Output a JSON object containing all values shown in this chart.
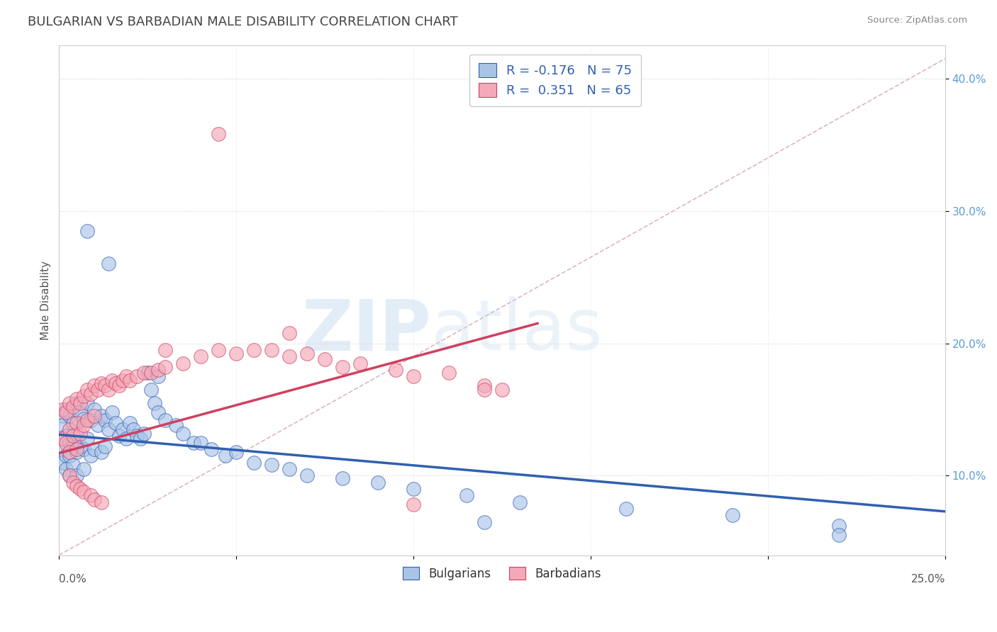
{
  "title": "BULGARIAN VS BARBADIAN MALE DISABILITY CORRELATION CHART",
  "source": "Source: ZipAtlas.com",
  "ylabel": "Male Disability",
  "xlim": [
    0.0,
    0.25
  ],
  "ylim": [
    0.04,
    0.425
  ],
  "bulgarian_color": "#aac4e8",
  "barbadian_color": "#f4a8b8",
  "bulgarian_line_color": "#3060b0",
  "barbadian_line_color": "#d04060",
  "ref_line_color": "#d8b0b8",
  "watermark_zip": "ZIP",
  "watermark_atlas": "atlas",
  "title_color": "#444444",
  "title_fontsize": 13,
  "legend_label1": "Bulgarians",
  "legend_label2": "Barbadians",
  "bg_color": "#ffffff",
  "plot_bg_color": "#ffffff",
  "y_ticks": [
    0.1,
    0.2,
    0.3,
    0.4
  ],
  "y_tick_labels": [
    "10.0%",
    "20.0%",
    "30.0%",
    "40.0%"
  ],
  "bulgarian_trend_x": [
    0.0,
    0.25
  ],
  "bulgarian_trend_y": [
    0.131,
    0.073
  ],
  "barbadian_trend_x": [
    0.0,
    0.135
  ],
  "barbadian_trend_y": [
    0.117,
    0.215
  ],
  "ref_line_x": [
    0.0,
    0.25
  ],
  "ref_line_y": [
    0.04,
    0.415
  ],
  "bulgarian_pts_x": [
    0.001,
    0.001,
    0.001,
    0.001,
    0.002,
    0.002,
    0.002,
    0.002,
    0.003,
    0.003,
    0.003,
    0.003,
    0.004,
    0.004,
    0.004,
    0.005,
    0.005,
    0.005,
    0.005,
    0.006,
    0.006,
    0.007,
    0.007,
    0.007,
    0.008,
    0.008,
    0.009,
    0.009,
    0.01,
    0.01,
    0.011,
    0.012,
    0.012,
    0.013,
    0.013,
    0.014,
    0.015,
    0.016,
    0.017,
    0.018,
    0.019,
    0.02,
    0.021,
    0.022,
    0.023,
    0.024,
    0.025,
    0.026,
    0.027,
    0.028,
    0.03,
    0.033,
    0.035,
    0.038,
    0.04,
    0.043,
    0.047,
    0.05,
    0.055,
    0.06,
    0.065,
    0.07,
    0.08,
    0.09,
    0.1,
    0.115,
    0.13,
    0.16,
    0.19,
    0.22,
    0.008,
    0.014,
    0.028,
    0.12,
    0.22
  ],
  "bulgarian_pts_y": [
    0.145,
    0.138,
    0.12,
    0.11,
    0.15,
    0.13,
    0.115,
    0.105,
    0.145,
    0.125,
    0.115,
    0.1,
    0.14,
    0.125,
    0.108,
    0.155,
    0.132,
    0.118,
    0.1,
    0.148,
    0.122,
    0.143,
    0.12,
    0.105,
    0.155,
    0.128,
    0.142,
    0.115,
    0.15,
    0.12,
    0.138,
    0.145,
    0.118,
    0.142,
    0.122,
    0.135,
    0.148,
    0.14,
    0.13,
    0.135,
    0.128,
    0.14,
    0.135,
    0.13,
    0.128,
    0.132,
    0.178,
    0.165,
    0.155,
    0.148,
    0.142,
    0.138,
    0.132,
    0.125,
    0.125,
    0.12,
    0.115,
    0.118,
    0.11,
    0.108,
    0.105,
    0.1,
    0.098,
    0.095,
    0.09,
    0.085,
    0.08,
    0.075,
    0.07,
    0.062,
    0.285,
    0.26,
    0.175,
    0.065,
    0.055
  ],
  "barbadian_pts_x": [
    0.001,
    0.001,
    0.002,
    0.002,
    0.003,
    0.003,
    0.003,
    0.004,
    0.004,
    0.005,
    0.005,
    0.005,
    0.006,
    0.006,
    0.007,
    0.007,
    0.008,
    0.008,
    0.009,
    0.01,
    0.01,
    0.011,
    0.012,
    0.013,
    0.014,
    0.015,
    0.016,
    0.017,
    0.018,
    0.019,
    0.02,
    0.022,
    0.024,
    0.026,
    0.028,
    0.03,
    0.035,
    0.04,
    0.045,
    0.05,
    0.055,
    0.06,
    0.065,
    0.07,
    0.075,
    0.08,
    0.085,
    0.095,
    0.1,
    0.11,
    0.12,
    0.125,
    0.045,
    0.03,
    0.065,
    0.12,
    0.003,
    0.004,
    0.005,
    0.006,
    0.007,
    0.009,
    0.01,
    0.012,
    0.1
  ],
  "barbadian_pts_y": [
    0.15,
    0.128,
    0.148,
    0.125,
    0.155,
    0.135,
    0.118,
    0.152,
    0.13,
    0.158,
    0.14,
    0.12,
    0.155,
    0.132,
    0.16,
    0.138,
    0.165,
    0.142,
    0.162,
    0.168,
    0.145,
    0.165,
    0.17,
    0.168,
    0.165,
    0.172,
    0.17,
    0.168,
    0.172,
    0.175,
    0.172,
    0.175,
    0.178,
    0.178,
    0.18,
    0.182,
    0.185,
    0.19,
    0.195,
    0.192,
    0.195,
    0.195,
    0.19,
    0.192,
    0.188,
    0.182,
    0.185,
    0.18,
    0.175,
    0.178,
    0.168,
    0.165,
    0.358,
    0.195,
    0.208,
    0.165,
    0.1,
    0.095,
    0.092,
    0.09,
    0.088,
    0.085,
    0.082,
    0.08,
    0.078
  ]
}
